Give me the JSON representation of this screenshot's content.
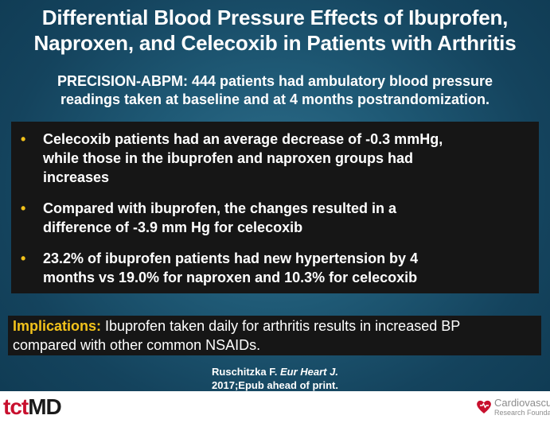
{
  "slide": {
    "title_line1": "Differential Blood Pressure Effects of Ibuprofen,",
    "title_line2": "Naproxen, and Celecoxib in Patients with Arthritis",
    "subtitle_line1": "PRECISION-ABPM: 444 patients had ambulatory blood pressure",
    "subtitle_line2": "readings taken at baseline and at 4 months postrandomization.",
    "bullet_marker": "•",
    "bullets": [
      {
        "line1": "Celecoxib patients had an average decrease of -0.3 mmHg,",
        "line2": "while those in the ibuprofen and naproxen groups had",
        "line3": "increases"
      },
      {
        "line1": "Compared with ibuprofen, the changes resulted in a",
        "line2": "difference of -3.9 mm Hg for celecoxib"
      },
      {
        "line1": "23.2% of ibuprofen patients had new hypertension by 4",
        "line2": "months vs 19.0% for naproxen and 10.3% for celecoxib"
      }
    ],
    "implications": {
      "label": "Implications:",
      "line1": " Ibuprofen taken daily for arthritis results in increased BP",
      "line2": "compared with other common NSAIDs."
    },
    "citation": {
      "author": "Ruschitzka F. ",
      "journal": "Eur Heart J.",
      "line2": "2017;Epub ahead of print."
    }
  },
  "footer": {
    "logo_tct": "tct",
    "logo_md": "MD",
    "crf_name": "Cardiovascular",
    "crf_sub": "Research Foundation",
    "icons": {
      "crf_logo": "heart-icon"
    }
  },
  "colors": {
    "background": "#1f5a76",
    "accent_yellow": "#f2c21b",
    "box_dark": "#161616",
    "tct_red": "#c8102e"
  }
}
